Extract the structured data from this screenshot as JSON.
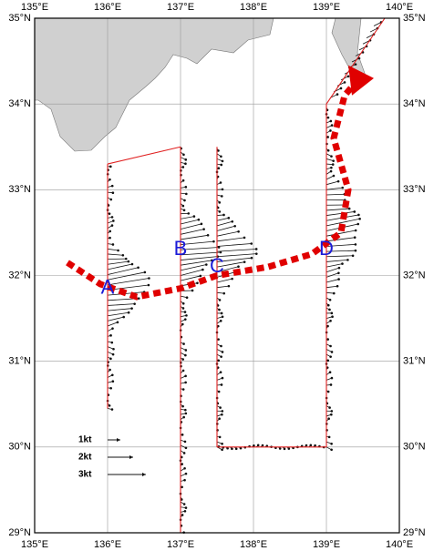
{
  "map": {
    "xlim": [
      135,
      140
    ],
    "ylim": [
      29,
      35
    ],
    "xticks": [
      {
        "value": 135,
        "label": "135°E"
      },
      {
        "value": 136,
        "label": "136°E"
      },
      {
        "value": 137,
        "label": "137°E"
      },
      {
        "value": 138,
        "label": "138°E"
      },
      {
        "value": 139,
        "label": "139°E"
      },
      {
        "value": 140,
        "label": "140°E"
      }
    ],
    "yticks": [
      {
        "value": 29,
        "label": "29°N"
      },
      {
        "value": 30,
        "label": "30°N"
      },
      {
        "value": 31,
        "label": "31°N"
      },
      {
        "value": 32,
        "label": "32°N"
      },
      {
        "value": 33,
        "label": "33°N"
      },
      {
        "value": 34,
        "label": "34°N"
      },
      {
        "value": 35,
        "label": "35°N"
      }
    ],
    "sections": [
      "A",
      "B",
      "C",
      "D"
    ],
    "legend": [
      {
        "value": 1,
        "label": "1kt"
      },
      {
        "value": 2,
        "label": "2kt"
      },
      {
        "value": 3,
        "label": "3kt"
      }
    ]
  }
}
